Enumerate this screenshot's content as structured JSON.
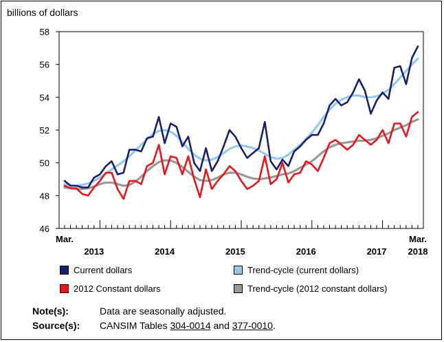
{
  "chart_data": {
    "type": "line",
    "ylabel": "billions of dollars",
    "ylim": [
      46,
      58
    ],
    "yticks": [
      46,
      48,
      50,
      52,
      54,
      56,
      58
    ],
    "x_start": "2013-03",
    "x_end": "2018-03",
    "x_corner_labels": [
      "Mar.",
      "Mar."
    ],
    "year_labels": [
      "2013",
      "2014",
      "2015",
      "2016",
      "2017",
      "2018"
    ],
    "legend_placement": "bottom",
    "grid": false,
    "series": [
      {
        "name": "Current dollars",
        "color": "#1a1f6b",
        "values": [
          48.9,
          48.6,
          48.6,
          48.5,
          48.5,
          49.1,
          49.3,
          49.8,
          50.1,
          49.3,
          49.4,
          50.8,
          50.8,
          50.7,
          51.5,
          51.6,
          52.8,
          51.2,
          52.4,
          52.2,
          51.0,
          51.6,
          50.0,
          49.5,
          50.9,
          49.5,
          50.1,
          51.0,
          52.0,
          51.6,
          50.9,
          50.3,
          50.6,
          50.9,
          52.5,
          50.1,
          49.6,
          50.2,
          49.8,
          50.7,
          51.0,
          51.4,
          51.7,
          51.7,
          52.4,
          53.5,
          53.9,
          53.5,
          53.7,
          54.3,
          55.1,
          54.4,
          53.0,
          53.8,
          54.3,
          53.9,
          55.8,
          55.9,
          54.8,
          56.4,
          57.1
        ]
      },
      {
        "name": "Trend-cycle (current dollars)",
        "color": "#93c9ec",
        "values": [
          48.7,
          48.65,
          48.6,
          48.65,
          48.75,
          48.9,
          49.1,
          49.35,
          49.6,
          49.85,
          50.1,
          50.4,
          50.75,
          51.1,
          51.45,
          51.75,
          51.95,
          52.0,
          51.9,
          51.65,
          51.25,
          50.85,
          50.5,
          50.25,
          50.15,
          50.2,
          50.35,
          50.6,
          50.85,
          51.0,
          51.05,
          51.0,
          50.9,
          50.75,
          50.55,
          50.35,
          50.25,
          50.3,
          50.5,
          50.8,
          51.1,
          51.45,
          51.85,
          52.3,
          52.8,
          53.25,
          53.6,
          53.85,
          54.0,
          54.1,
          54.1,
          54.0,
          54.0,
          54.05,
          54.2,
          54.45,
          54.8,
          55.2,
          55.6,
          56.0,
          56.35
        ]
      },
      {
        "name": "2012 Constant dollars",
        "color": "#e8151b",
        "values": [
          48.6,
          48.45,
          48.45,
          48.1,
          48.0,
          48.5,
          48.9,
          49.4,
          49.4,
          48.4,
          47.8,
          48.9,
          48.9,
          48.7,
          49.8,
          50.0,
          51.1,
          49.3,
          50.4,
          50.3,
          49.3,
          50.4,
          49.0,
          47.9,
          49.6,
          48.4,
          48.9,
          49.3,
          49.8,
          49.5,
          48.9,
          48.4,
          48.6,
          48.9,
          50.4,
          48.7,
          49.0,
          50.0,
          48.8,
          49.3,
          49.4,
          50.1,
          49.9,
          49.5,
          50.3,
          51.2,
          51.4,
          51.1,
          50.8,
          51.1,
          51.7,
          51.4,
          51.1,
          51.4,
          52.0,
          51.2,
          52.4,
          52.4,
          51.6,
          52.8,
          53.1
        ]
      },
      {
        "name": "Trend-cycle (2012 constant dollars)",
        "color": "#999999",
        "values": [
          48.5,
          48.45,
          48.4,
          48.4,
          48.45,
          48.55,
          48.7,
          48.8,
          48.8,
          48.7,
          48.6,
          48.65,
          48.85,
          49.15,
          49.5,
          49.8,
          50.05,
          50.15,
          50.15,
          50.0,
          49.75,
          49.45,
          49.15,
          48.95,
          48.9,
          48.95,
          49.1,
          49.3,
          49.4,
          49.4,
          49.3,
          49.15,
          49.05,
          49.0,
          49.05,
          49.1,
          49.2,
          49.3,
          49.35,
          49.5,
          49.7,
          49.9,
          50.1,
          50.4,
          50.7,
          50.95,
          51.1,
          51.2,
          51.25,
          51.3,
          51.35,
          51.35,
          51.4,
          51.5,
          51.65,
          51.8,
          52.0,
          52.15,
          52.3,
          52.5,
          52.65
        ]
      }
    ]
  },
  "legend": [
    {
      "label": "Current dollars",
      "color": "#1a1f6b"
    },
    {
      "label": "Trend-cycle (current dollars)",
      "color": "#93c9ec"
    },
    {
      "label": "2012 Constant dollars",
      "color": "#e8151b"
    },
    {
      "label": "Trend-cycle (2012 constant dollars)",
      "color": "#999999"
    }
  ],
  "notes": {
    "note_label": "Note(s):",
    "note_text": "Data are seasonally adjusted.",
    "source_label": "Source(s):",
    "source_prefix": "CANSIM Tables ",
    "source_link1": "304-0014",
    "source_mid": " and ",
    "source_link2": "377-0010",
    "source_suffix": "."
  }
}
